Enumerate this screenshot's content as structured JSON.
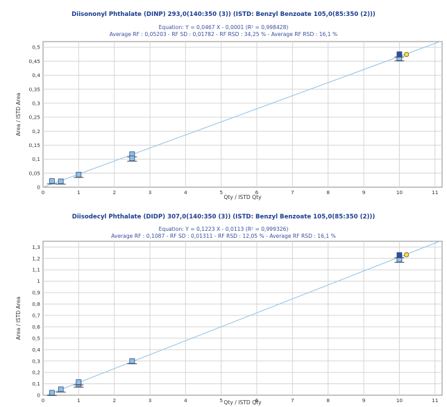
{
  "chart_data": [
    {
      "type": "scatter",
      "title": "Diisononyl Phthalate (DINP) 293,0(140:350 (3)) (ISTD: Benzyl Benzoate 105,0(85:350 (2)))",
      "equation": "Equation: Y = 0,0467 X - 0,0001 (R² = 0,998428)",
      "rf_summary": "Average RF : 0,05203  - RF SD : 0,01782  - RF RSD : 34,25 %  - Average RF RSD : 16,1 %",
      "xlabel": "Qty / ISTD Qty",
      "ylabel": "Area / ISTD Area",
      "xlim": [
        0,
        11.2
      ],
      "ylim": [
        0,
        0.52
      ],
      "xticks": [
        "0",
        "1",
        "2",
        "3",
        "4",
        "5",
        "6",
        "7",
        "8",
        "9",
        "10",
        "11"
      ],
      "yticks": [
        "0",
        "0,05",
        "0,1",
        "0,15",
        "0,2",
        "0,25",
        "0,3",
        "0,35",
        "0,4",
        "0,45",
        "0,5"
      ],
      "grid": true,
      "fit_line": {
        "slope": 0.0467,
        "intercept": -0.0001
      },
      "series": [
        {
          "x": [
            0.25,
            0.5,
            1,
            2.5,
            2.5,
            10,
            10
          ],
          "y": [
            0.022,
            0.021,
            0.045,
            0.118,
            0.103,
            0.461,
            0.475
          ]
        }
      ],
      "highlight_points": [
        {
          "x": 10.2,
          "y": 0.474
        }
      ],
      "colors": {
        "fit_line": "#9ec8e8",
        "point_light": "#8fc0e8",
        "point_dark": "#2e4f9e",
        "highlight": "#f2e14a"
      }
    },
    {
      "type": "scatter",
      "title": "Diisodecyl Phthalate (DIDP) 307,0(140:350 (3)) (ISTD: Benzyl Benzoate 105,0(85:350 (2)))",
      "equation": "Equation: Y = 0,1223 X - 0,0113 (R² = 0,999326)",
      "rf_summary": "Average RF : 0,1087  - RF SD : 0,01311  - RF RSD : 12,05 %  - Average RF RSD : 16,1 %",
      "xlabel": "Qty / ISTD Qty",
      "ylabel": "Area / ISTD Area",
      "xlim": [
        0,
        11.2
      ],
      "ylim": [
        0,
        1.35
      ],
      "xticks": [
        "0",
        "1",
        "2",
        "3",
        "4",
        "5",
        "6",
        "7",
        "8",
        "9",
        "10",
        "11"
      ],
      "yticks": [
        "0",
        "0,1",
        "0,2",
        "0,3",
        "0,4",
        "0,5",
        "0,6",
        "0,7",
        "0,8",
        "0,9",
        "1",
        "1,1",
        "1,2",
        "1,3"
      ],
      "grid": true,
      "fit_line": {
        "slope": 0.1223,
        "intercept": -0.0113
      },
      "series": [
        {
          "x": [
            0.25,
            0.5,
            1,
            1,
            2.5,
            10,
            10
          ],
          "y": [
            0.022,
            0.052,
            0.095,
            0.115,
            0.3,
            1.19,
            1.23
          ]
        }
      ],
      "highlight_points": [
        {
          "x": 10.2,
          "y": 1.232
        }
      ],
      "colors": {
        "fit_line": "#9ec8e8",
        "point_light": "#8fc0e8",
        "point_dark": "#2e4f9e",
        "highlight": "#f2e14a"
      }
    }
  ]
}
